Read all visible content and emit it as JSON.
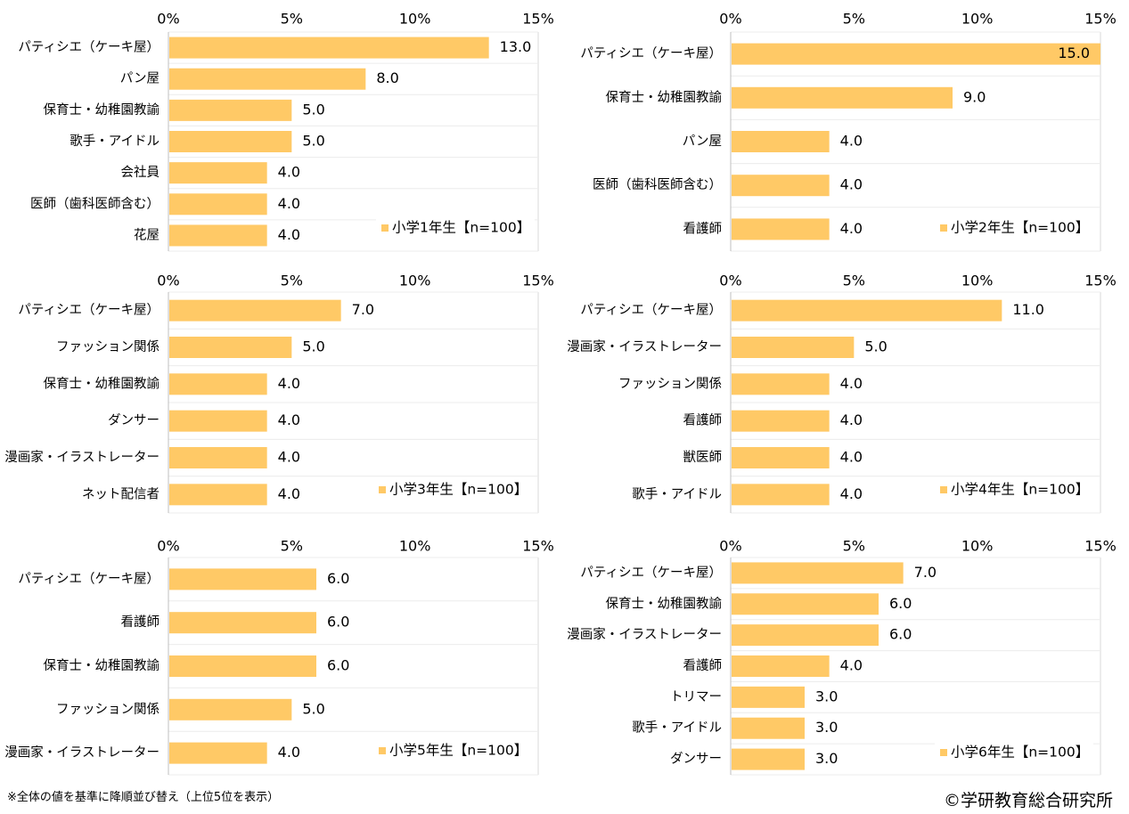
{
  "footnote": "※全体の値を基準に降順並び替え（上位5位を表示）",
  "copyright": "©学研教育総合研究所",
  "colors": {
    "bar": "#ffc966",
    "grid": "#d9d9d9",
    "axis": "#bfbfbf"
  },
  "chart_data": [
    {
      "type": "bar",
      "orientation": "horizontal",
      "legend": "小学1年生【n=100】",
      "legend_position": "bottom-right",
      "xlim": [
        0,
        15
      ],
      "ticks": [
        "0%",
        "5%",
        "10%",
        "15%"
      ],
      "categories": [
        "パティシエ（ケーキ屋）",
        "パン屋",
        "保育士・幼稚園教諭",
        "歌手・アイドル",
        "会社員",
        "医師（歯科医師含む）",
        "花屋"
      ],
      "values": [
        13.0,
        8.0,
        5.0,
        5.0,
        4.0,
        4.0,
        4.0
      ],
      "labels": [
        "13.0",
        "8.0",
        "5.0",
        "5.0",
        "4.0",
        "4.0",
        "4.0"
      ]
    },
    {
      "type": "bar",
      "orientation": "horizontal",
      "legend": "小学2年生【n=100】",
      "legend_position": "bottom-right",
      "xlim": [
        0,
        15
      ],
      "ticks": [
        "0%",
        "5%",
        "10%",
        "15%"
      ],
      "categories": [
        "パティシエ（ケーキ屋）",
        "保育士・幼稚園教諭",
        "パン屋",
        "医師（歯科医師含む）",
        "看護師"
      ],
      "values": [
        15.0,
        9.0,
        4.0,
        4.0,
        4.0
      ],
      "labels": [
        "15.0",
        "9.0",
        "4.0",
        "4.0",
        "4.0"
      ]
    },
    {
      "type": "bar",
      "orientation": "horizontal",
      "legend": "小学3年生【n=100】",
      "legend_position": "bottom-right",
      "xlim": [
        0,
        15
      ],
      "ticks": [
        "0%",
        "5%",
        "10%",
        "15%"
      ],
      "categories": [
        "パティシエ（ケーキ屋）",
        "ファッション関係",
        "保育士・幼稚園教諭",
        "ダンサー",
        "漫画家・イラストレーター",
        "ネット配信者"
      ],
      "values": [
        7.0,
        5.0,
        4.0,
        4.0,
        4.0,
        4.0
      ],
      "labels": [
        "7.0",
        "5.0",
        "4.0",
        "4.0",
        "4.0",
        "4.0"
      ]
    },
    {
      "type": "bar",
      "orientation": "horizontal",
      "legend": "小学4年生【n=100】",
      "legend_position": "bottom-right",
      "xlim": [
        0,
        15
      ],
      "ticks": [
        "0%",
        "5%",
        "10%",
        "15%"
      ],
      "categories": [
        "パティシエ（ケーキ屋）",
        "漫画家・イラストレーター",
        "ファッション関係",
        "看護師",
        "獣医師",
        "歌手・アイドル"
      ],
      "values": [
        11.0,
        5.0,
        4.0,
        4.0,
        4.0,
        4.0
      ],
      "labels": [
        "11.0",
        "5.0",
        "4.0",
        "4.0",
        "4.0",
        "4.0"
      ]
    },
    {
      "type": "bar",
      "orientation": "horizontal",
      "legend": "小学5年生【n=100】",
      "legend_position": "bottom-right",
      "xlim": [
        0,
        15
      ],
      "ticks": [
        "0%",
        "5%",
        "10%",
        "15%"
      ],
      "categories": [
        "パティシエ（ケーキ屋）",
        "看護師",
        "保育士・幼稚園教諭",
        "ファッション関係",
        "漫画家・イラストレーター"
      ],
      "values": [
        6.0,
        6.0,
        6.0,
        5.0,
        4.0
      ],
      "labels": [
        "6.0",
        "6.0",
        "6.0",
        "5.0",
        "4.0"
      ]
    },
    {
      "type": "bar",
      "orientation": "horizontal",
      "legend": "小学6年生【n=100】",
      "legend_position": "bottom-right",
      "xlim": [
        0,
        15
      ],
      "ticks": [
        "0%",
        "5%",
        "10%",
        "15%"
      ],
      "categories": [
        "パティシエ（ケーキ屋）",
        "保育士・幼稚園教諭",
        "漫画家・イラストレーター",
        "看護師",
        "トリマー",
        "歌手・アイドル",
        "ダンサー"
      ],
      "values": [
        7.0,
        6.0,
        6.0,
        4.0,
        3.0,
        3.0,
        3.0
      ],
      "labels": [
        "7.0",
        "6.0",
        "6.0",
        "4.0",
        "3.0",
        "3.0",
        "3.0"
      ]
    }
  ]
}
